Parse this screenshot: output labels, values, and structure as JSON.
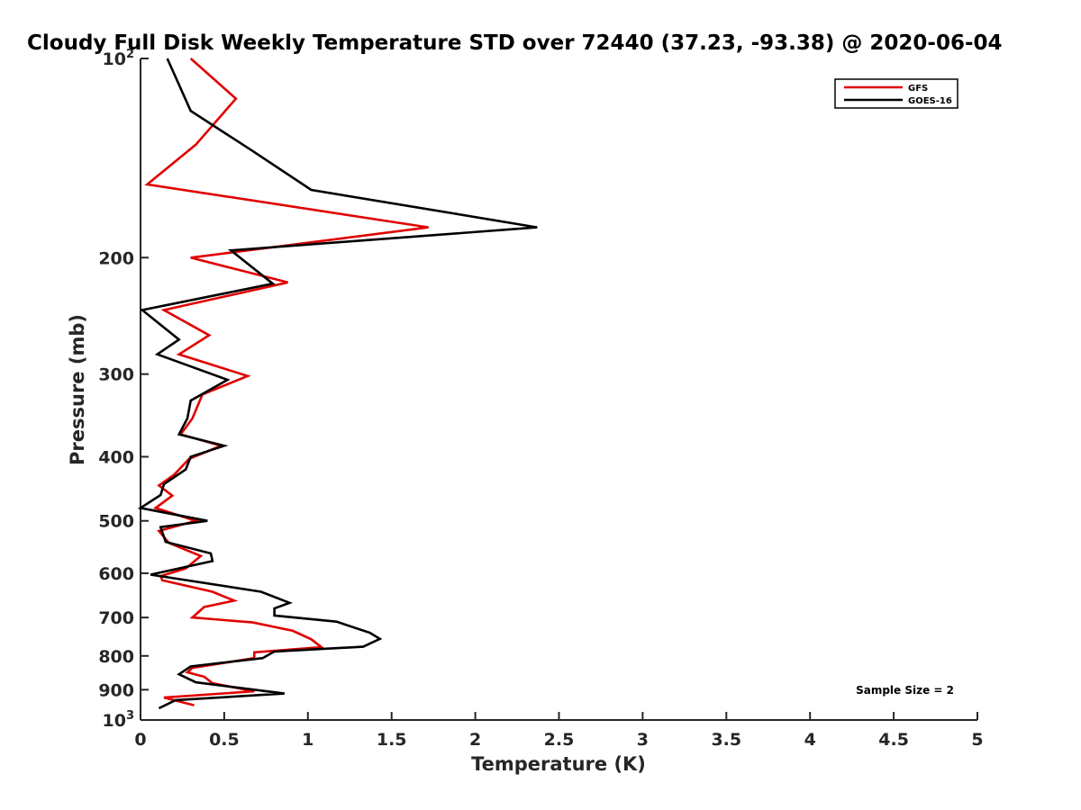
{
  "chart_data": {
    "type": "line",
    "title": "Cloudy Full Disk Weekly Temperature STD over 72440 (37.23, -93.38) @ 2020-06-04",
    "xlabel": "Temperature (K)",
    "ylabel": "Pressure (mb)",
    "xlim": [
      0,
      5
    ],
    "ylim": [
      100,
      1000
    ],
    "y_scale": "log",
    "y_reversed": true,
    "x_ticks": [
      {
        "value": 0,
        "label": "0"
      },
      {
        "value": 0.5,
        "label": "0.5"
      },
      {
        "value": 1,
        "label": "1"
      },
      {
        "value": 1.5,
        "label": "1.5"
      },
      {
        "value": 2,
        "label": "2"
      },
      {
        "value": 2.5,
        "label": "2.5"
      },
      {
        "value": 3,
        "label": "3"
      },
      {
        "value": 3.5,
        "label": "3.5"
      },
      {
        "value": 4,
        "label": "4"
      },
      {
        "value": 4.5,
        "label": "4.5"
      },
      {
        "value": 5,
        "label": "5"
      }
    ],
    "y_ticks": [
      {
        "value": 100,
        "label": "10",
        "sup": "2"
      },
      {
        "value": 200,
        "label": "200",
        "sup": ""
      },
      {
        "value": 300,
        "label": "300",
        "sup": ""
      },
      {
        "value": 400,
        "label": "400",
        "sup": ""
      },
      {
        "value": 500,
        "label": "500",
        "sup": ""
      },
      {
        "value": 600,
        "label": "600",
        "sup": ""
      },
      {
        "value": 700,
        "label": "700",
        "sup": ""
      },
      {
        "value": 800,
        "label": "800",
        "sup": ""
      },
      {
        "value": 900,
        "label": "900",
        "sup": ""
      },
      {
        "value": 1000,
        "label": "10",
        "sup": "3"
      }
    ],
    "grid": false,
    "legend_position": "top-right",
    "annotation": "Sample Size = 2",
    "series": [
      {
        "name": "GFS",
        "color": "#e00000",
        "points": [
          [
            0.3,
            100
          ],
          [
            0.57,
            115
          ],
          [
            0.33,
            135
          ],
          [
            0.04,
            155
          ],
          [
            1.72,
            180
          ],
          [
            0.3,
            200
          ],
          [
            0.88,
            218
          ],
          [
            0.14,
            240
          ],
          [
            0.41,
            262
          ],
          [
            0.23,
            280
          ],
          [
            0.64,
            302
          ],
          [
            0.37,
            322
          ],
          [
            0.31,
            350
          ],
          [
            0.24,
            370
          ],
          [
            0.48,
            385
          ],
          [
            0.29,
            403
          ],
          [
            0.2,
            426
          ],
          [
            0.11,
            442
          ],
          [
            0.19,
            458
          ],
          [
            0.09,
            478
          ],
          [
            0.33,
            500
          ],
          [
            0.11,
            518
          ],
          [
            0.17,
            540
          ],
          [
            0.36,
            565
          ],
          [
            0.27,
            590
          ],
          [
            0.12,
            606
          ],
          [
            0.13,
            615
          ],
          [
            0.43,
            640
          ],
          [
            0.56,
            660
          ],
          [
            0.38,
            675
          ],
          [
            0.31,
            700
          ],
          [
            0.67,
            712
          ],
          [
            0.91,
            733
          ],
          [
            1.02,
            755
          ],
          [
            1.08,
            776
          ],
          [
            0.68,
            790
          ],
          [
            0.68,
            806
          ],
          [
            0.31,
            834
          ],
          [
            0.28,
            847
          ],
          [
            0.38,
            860
          ],
          [
            0.43,
            880
          ],
          [
            0.68,
            905
          ],
          [
            0.14,
            925
          ],
          [
            0.32,
            950
          ]
        ]
      },
      {
        "name": "GOES-16",
        "color": "#000000",
        "points": [
          [
            0.16,
            100
          ],
          [
            0.3,
            120
          ],
          [
            0.67,
            138
          ],
          [
            1.02,
            158
          ],
          [
            2.37,
            180
          ],
          [
            0.54,
            195
          ],
          [
            0.79,
            219
          ],
          [
            0.01,
            240
          ],
          [
            0.23,
            266
          ],
          [
            0.1,
            280
          ],
          [
            0.52,
            306
          ],
          [
            0.3,
            329
          ],
          [
            0.28,
            350
          ],
          [
            0.23,
            370
          ],
          [
            0.5,
            385
          ],
          [
            0.3,
            400
          ],
          [
            0.27,
            418
          ],
          [
            0.14,
            440
          ],
          [
            0.12,
            457
          ],
          [
            0.0,
            478
          ],
          [
            0.4,
            500
          ],
          [
            0.12,
            511
          ],
          [
            0.15,
            538
          ],
          [
            0.42,
            560
          ],
          [
            0.43,
            575
          ],
          [
            0.06,
            603
          ],
          [
            0.72,
            640
          ],
          [
            0.89,
            665
          ],
          [
            0.8,
            678
          ],
          [
            0.8,
            695
          ],
          [
            1.17,
            710
          ],
          [
            1.37,
            738
          ],
          [
            1.43,
            754
          ],
          [
            1.33,
            775
          ],
          [
            0.8,
            788
          ],
          [
            0.73,
            806
          ],
          [
            0.3,
            830
          ],
          [
            0.23,
            853
          ],
          [
            0.33,
            877
          ],
          [
            0.86,
            912
          ],
          [
            0.21,
            933
          ],
          [
            0.11,
            960
          ]
        ]
      }
    ]
  }
}
